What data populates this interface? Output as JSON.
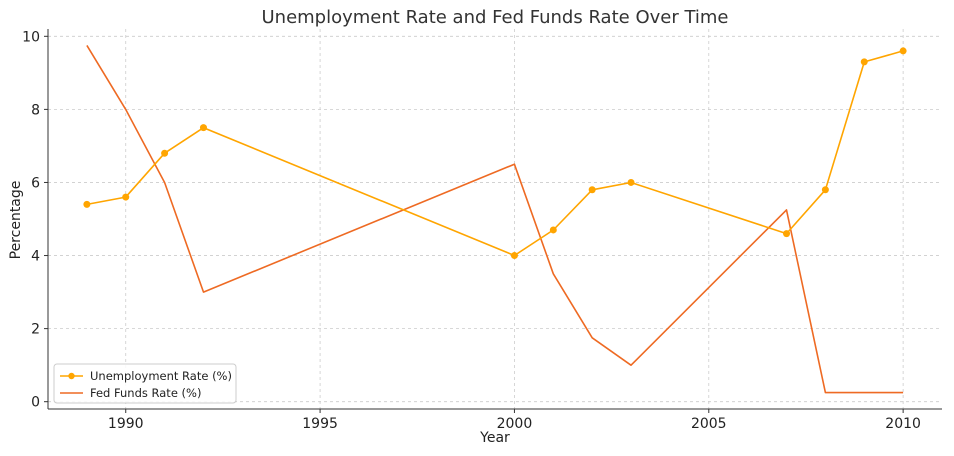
{
  "chart_data": {
    "type": "line",
    "title": "Unemployment Rate and Fed Funds Rate Over Time",
    "xlabel": "Year",
    "ylabel": "Percentage",
    "xlim": [
      1988.0,
      2011.0
    ],
    "ylim": [
      -0.2,
      10.2
    ],
    "xticks": [
      1990,
      1995,
      2000,
      2005,
      2010
    ],
    "yticks": [
      0,
      2,
      4,
      6,
      8,
      10
    ],
    "grid": true,
    "legend_position": "lower-left",
    "series": [
      {
        "name": "Unemployment Rate (%)",
        "color": "#FFA500",
        "marker": "circle",
        "x": [
          1989,
          1990,
          1991,
          1992,
          2000,
          2001,
          2002,
          2003,
          2007,
          2008,
          2009,
          2010
        ],
        "y": [
          5.4,
          5.6,
          6.8,
          7.5,
          4.0,
          4.7,
          5.8,
          6.0,
          4.6,
          5.8,
          9.3,
          9.6
        ]
      },
      {
        "name": "Fed Funds Rate (%)",
        "color": "#EE6A23",
        "marker": "none",
        "x": [
          1989,
          1990,
          1991,
          1992,
          2000,
          2001,
          2002,
          2003,
          2007,
          2008,
          2009,
          2010
        ],
        "y": [
          9.75,
          8.0,
          6.0,
          3.0,
          6.5,
          3.5,
          1.75,
          1.0,
          5.25,
          0.25,
          0.25,
          0.25
        ]
      }
    ]
  }
}
